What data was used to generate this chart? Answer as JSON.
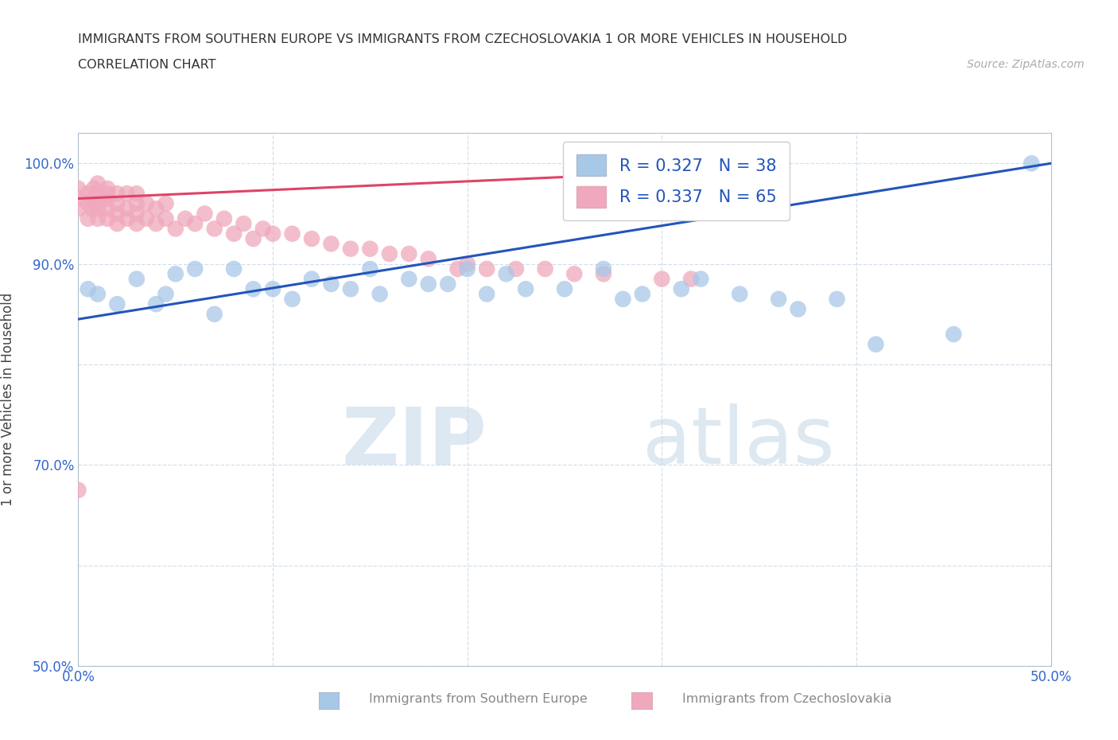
{
  "title_line1": "IMMIGRANTS FROM SOUTHERN EUROPE VS IMMIGRANTS FROM CZECHOSLOVAKIA 1 OR MORE VEHICLES IN HOUSEHOLD",
  "title_line2": "CORRELATION CHART",
  "source": "Source: ZipAtlas.com",
  "ylabel": "1 or more Vehicles in Household",
  "xlim": [
    0.0,
    0.5
  ],
  "ylim": [
    0.5,
    1.03
  ],
  "blue_R": 0.327,
  "blue_N": 38,
  "pink_R": 0.337,
  "pink_N": 65,
  "blue_color": "#a8c8e8",
  "pink_color": "#f0a8bc",
  "blue_line_color": "#2255bb",
  "pink_line_color": "#dd4466",
  "legend_text_color": "#2255bb",
  "tick_color": "#3366cc",
  "blue_scatter_x": [
    0.005,
    0.01,
    0.02,
    0.03,
    0.04,
    0.045,
    0.05,
    0.06,
    0.07,
    0.08,
    0.09,
    0.1,
    0.11,
    0.12,
    0.13,
    0.14,
    0.15,
    0.155,
    0.17,
    0.18,
    0.19,
    0.2,
    0.21,
    0.22,
    0.23,
    0.25,
    0.27,
    0.28,
    0.29,
    0.31,
    0.32,
    0.34,
    0.36,
    0.37,
    0.39,
    0.41,
    0.45,
    0.49
  ],
  "blue_scatter_y": [
    0.875,
    0.87,
    0.86,
    0.885,
    0.86,
    0.87,
    0.89,
    0.895,
    0.85,
    0.895,
    0.875,
    0.875,
    0.865,
    0.885,
    0.88,
    0.875,
    0.895,
    0.87,
    0.885,
    0.88,
    0.88,
    0.895,
    0.87,
    0.89,
    0.875,
    0.875,
    0.895,
    0.865,
    0.87,
    0.875,
    0.885,
    0.87,
    0.865,
    0.855,
    0.865,
    0.82,
    0.83,
    1.0
  ],
  "pink_scatter_x": [
    0.0,
    0.0,
    0.0,
    0.005,
    0.005,
    0.005,
    0.007,
    0.007,
    0.008,
    0.01,
    0.01,
    0.01,
    0.01,
    0.01,
    0.015,
    0.015,
    0.015,
    0.015,
    0.015,
    0.02,
    0.02,
    0.02,
    0.02,
    0.025,
    0.025,
    0.025,
    0.03,
    0.03,
    0.03,
    0.03,
    0.035,
    0.035,
    0.04,
    0.04,
    0.045,
    0.045,
    0.05,
    0.055,
    0.06,
    0.065,
    0.07,
    0.075,
    0.08,
    0.085,
    0.09,
    0.095,
    0.1,
    0.11,
    0.12,
    0.13,
    0.14,
    0.15,
    0.16,
    0.17,
    0.18,
    0.195,
    0.2,
    0.21,
    0.225,
    0.24,
    0.255,
    0.27,
    0.3,
    0.315,
    0.0
  ],
  "pink_scatter_y": [
    0.955,
    0.965,
    0.975,
    0.945,
    0.96,
    0.97,
    0.955,
    0.965,
    0.975,
    0.945,
    0.955,
    0.96,
    0.97,
    0.98,
    0.945,
    0.955,
    0.965,
    0.97,
    0.975,
    0.94,
    0.95,
    0.96,
    0.97,
    0.945,
    0.955,
    0.97,
    0.94,
    0.95,
    0.96,
    0.97,
    0.945,
    0.96,
    0.94,
    0.955,
    0.945,
    0.96,
    0.935,
    0.945,
    0.94,
    0.95,
    0.935,
    0.945,
    0.93,
    0.94,
    0.925,
    0.935,
    0.93,
    0.93,
    0.925,
    0.92,
    0.915,
    0.915,
    0.91,
    0.91,
    0.905,
    0.895,
    0.9,
    0.895,
    0.895,
    0.895,
    0.89,
    0.89,
    0.885,
    0.885,
    0.675
  ],
  "blue_line_x0": 0.0,
  "blue_line_y0": 0.845,
  "blue_line_x1": 0.5,
  "blue_line_y1": 1.0,
  "pink_line_x0": 0.0,
  "pink_line_y0": 0.965,
  "pink_line_x1": 0.35,
  "pink_line_y1": 0.995
}
